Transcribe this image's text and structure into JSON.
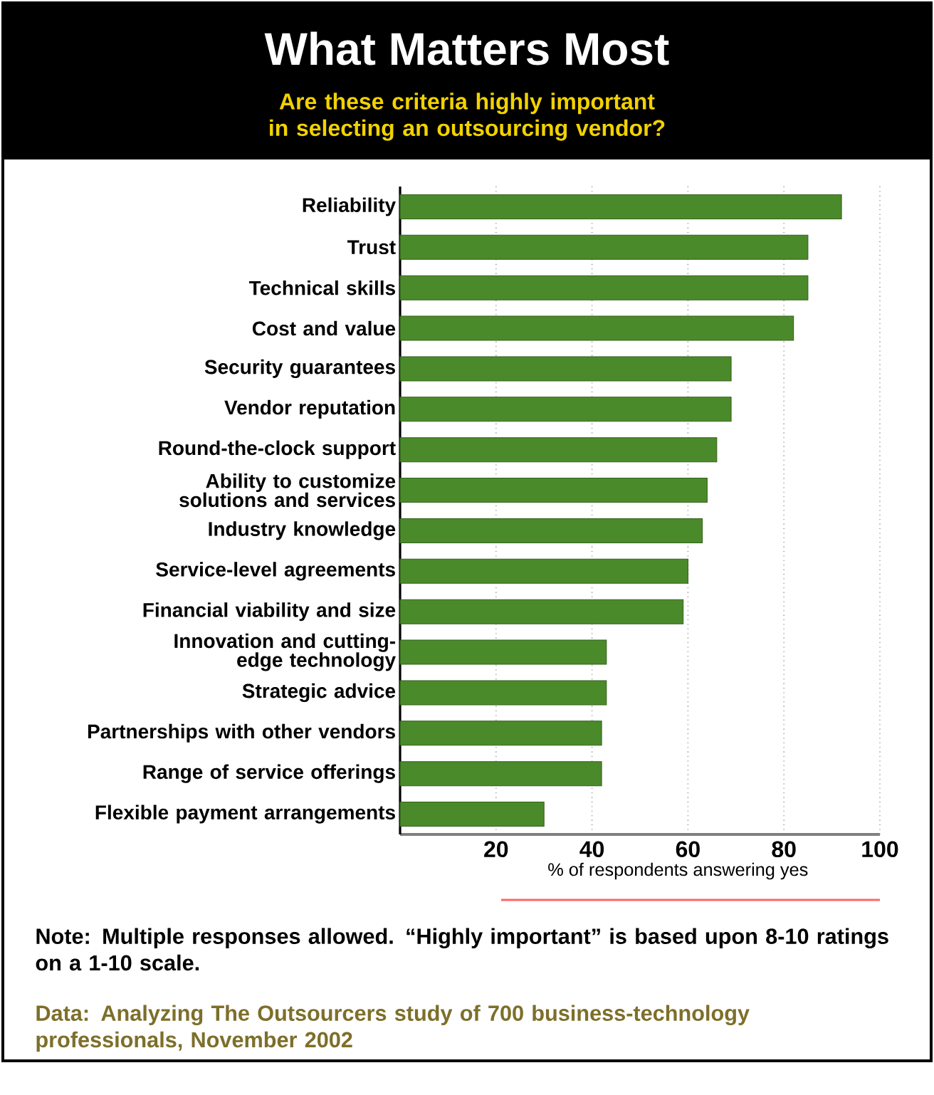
{
  "chart_data": {
    "type": "bar",
    "orientation": "horizontal",
    "title": "What Matters Most",
    "subtitle": "Are these criteria highly important in selecting an outsourcing vendor?",
    "categories": [
      "Reliability",
      "Trust",
      "Technical skills",
      "Cost and value",
      "Security guarantees",
      "Vendor reputation",
      "Round-the-clock support",
      "Ability to customize solutions and services",
      "Industry knowledge",
      "Service-level agreements",
      "Financial viability and size",
      "Innovation and cutting-edge technology",
      "Strategic advice",
      "Partnerships with other vendors",
      "Range of service offerings",
      "Flexible payment arrangements"
    ],
    "values": [
      92,
      85,
      85,
      82,
      69,
      69,
      66,
      64,
      63,
      60,
      59,
      43,
      43,
      42,
      42,
      30
    ],
    "color": "#4a8a2a",
    "xlim": [
      0,
      100
    ],
    "xticks": [
      20,
      40,
      60,
      80,
      100
    ],
    "xlabel": "% of respondents answering yes",
    "grid": "x",
    "annotations": [
      "Note: Multiple responses allowed. “Highly important” is based upon 8-10 ratings on a 1-10 scale.",
      "Data: Analyzing The Outsourcers study of 700 business-technology professionals, November 2002"
    ]
  }
}
